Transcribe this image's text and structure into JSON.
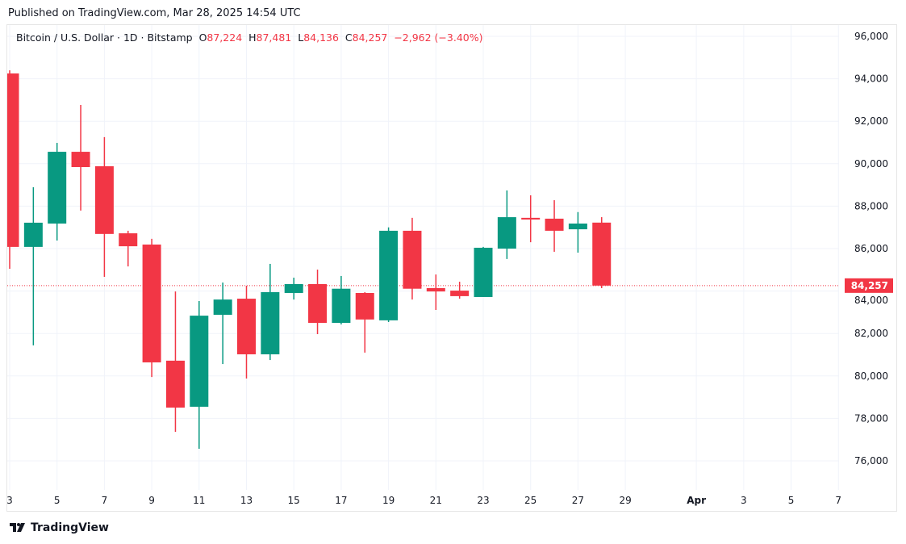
{
  "header": {
    "published": "Published on TradingView.com, Mar 28, 2025 14:54 UTC"
  },
  "legend": {
    "symbol": "Bitcoin / U.S. Dollar · 1D · Bitstamp",
    "o_label": "O",
    "o": "87,224",
    "h_label": "H",
    "h": "87,481",
    "l_label": "L",
    "l": "84,136",
    "c_label": "C",
    "c": "84,257",
    "change": "−2,962 (−3.40%)"
  },
  "footer": {
    "brand": "TradingView",
    "logo_icon": "tradingview-logo-icon"
  },
  "colors": {
    "up": "#089981",
    "down": "#f23645",
    "grid": "#f0f3fa",
    "last_price": "#f23645"
  },
  "chart_data": {
    "type": "candlestick",
    "title": "Bitcoin / U.S. Dollar · 1D · Bitstamp",
    "x_ticks": [
      "3",
      "5",
      "7",
      "9",
      "11",
      "13",
      "15",
      "17",
      "19",
      "21",
      "23",
      "25",
      "27",
      "29",
      "Apr",
      "3",
      "5",
      "7"
    ],
    "y_ticks": [
      "96,000",
      "94,000",
      "92,000",
      "90,000",
      "88,000",
      "86,000",
      "84,000",
      "82,000",
      "80,000",
      "78,000",
      "76,000"
    ],
    "ylim": [
      75000,
      96500
    ],
    "last_price_label": "84,257",
    "last_price": 84257,
    "grid": true,
    "candles": [
      {
        "date": "Mar 3",
        "o": 94250,
        "h": 94400,
        "l": 85050,
        "c": 86080
      },
      {
        "date": "Mar 4",
        "o": 86080,
        "h": 88890,
        "l": 81440,
        "c": 87220
      },
      {
        "date": "Mar 5",
        "o": 87180,
        "h": 90980,
        "l": 86380,
        "c": 90560
      },
      {
        "date": "Mar 6",
        "o": 90560,
        "h": 92770,
        "l": 87790,
        "c": 89840
      },
      {
        "date": "Mar 7",
        "o": 89880,
        "h": 91250,
        "l": 84670,
        "c": 86690
      },
      {
        "date": "Mar 8",
        "o": 86720,
        "h": 86840,
        "l": 85160,
        "c": 86110
      },
      {
        "date": "Mar 9",
        "o": 86190,
        "h": 86460,
        "l": 79950,
        "c": 80640
      },
      {
        "date": "Mar 10",
        "o": 80720,
        "h": 83980,
        "l": 77370,
        "c": 78510
      },
      {
        "date": "Mar 11",
        "o": 78550,
        "h": 83530,
        "l": 76570,
        "c": 82840
      },
      {
        "date": "Mar 12",
        "o": 82880,
        "h": 84400,
        "l": 80560,
        "c": 83600
      },
      {
        "date": "Mar 13",
        "o": 83640,
        "h": 84250,
        "l": 79880,
        "c": 81020
      },
      {
        "date": "Mar 14",
        "o": 81020,
        "h": 85280,
        "l": 80750,
        "c": 83950
      },
      {
        "date": "Mar 15",
        "o": 83910,
        "h": 84630,
        "l": 83600,
        "c": 84330
      },
      {
        "date": "Mar 16",
        "o": 84330,
        "h": 85010,
        "l": 81970,
        "c": 82500
      },
      {
        "date": "Mar 17",
        "o": 82500,
        "h": 84710,
        "l": 82430,
        "c": 84110
      },
      {
        "date": "Mar 18",
        "o": 83910,
        "h": 83950,
        "l": 81100,
        "c": 82660
      },
      {
        "date": "Mar 19",
        "o": 82620,
        "h": 87000,
        "l": 82540,
        "c": 86840
      },
      {
        "date": "Mar 20",
        "o": 86840,
        "h": 87450,
        "l": 83600,
        "c": 84110
      },
      {
        "date": "Mar 21",
        "o": 84140,
        "h": 84780,
        "l": 83110,
        "c": 83980
      },
      {
        "date": "Mar 22",
        "o": 84020,
        "h": 84440,
        "l": 83640,
        "c": 83760
      },
      {
        "date": "Mar 23",
        "o": 83720,
        "h": 86080,
        "l": 83720,
        "c": 86040
      },
      {
        "date": "Mar 24",
        "o": 86000,
        "h": 88740,
        "l": 85510,
        "c": 87480
      },
      {
        "date": "Mar 25",
        "o": 87450,
        "h": 88510,
        "l": 86300,
        "c": 87370
      },
      {
        "date": "Mar 26",
        "o": 87410,
        "h": 88280,
        "l": 85850,
        "c": 86840
      },
      {
        "date": "Mar 27",
        "o": 86910,
        "h": 87720,
        "l": 85810,
        "c": 87180
      },
      {
        "date": "Mar 28",
        "o": 87224,
        "h": 87481,
        "l": 84136,
        "c": 84257
      }
    ]
  }
}
